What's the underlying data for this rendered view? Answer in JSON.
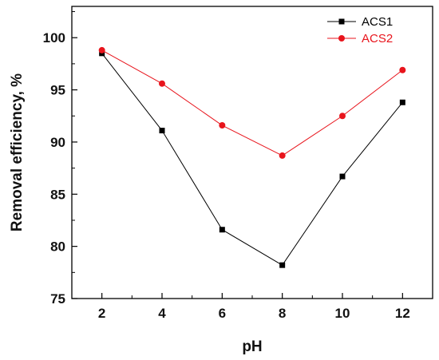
{
  "chart_data": {
    "type": "line",
    "xlabel": "pH",
    "ylabel": "Removal efficiency, %",
    "x": [
      2,
      4,
      6,
      8,
      10,
      12
    ],
    "xlim": [
      1,
      13
    ],
    "ylim": [
      75,
      103
    ],
    "xticks": [
      "2",
      "4",
      "6",
      "8",
      "10",
      "12"
    ],
    "yticks": [
      "75",
      "80",
      "85",
      "90",
      "95",
      "100"
    ],
    "grid": false,
    "legend_position": "top-right",
    "series": [
      {
        "name": "ACS1",
        "color": "#000000",
        "marker": "square",
        "values": [
          98.5,
          91.1,
          81.6,
          78.2,
          86.7,
          93.8
        ]
      },
      {
        "name": "ACS2",
        "color": "#e8141c",
        "marker": "circle",
        "values": [
          98.8,
          95.6,
          91.6,
          88.7,
          92.5,
          96.9
        ]
      }
    ]
  }
}
